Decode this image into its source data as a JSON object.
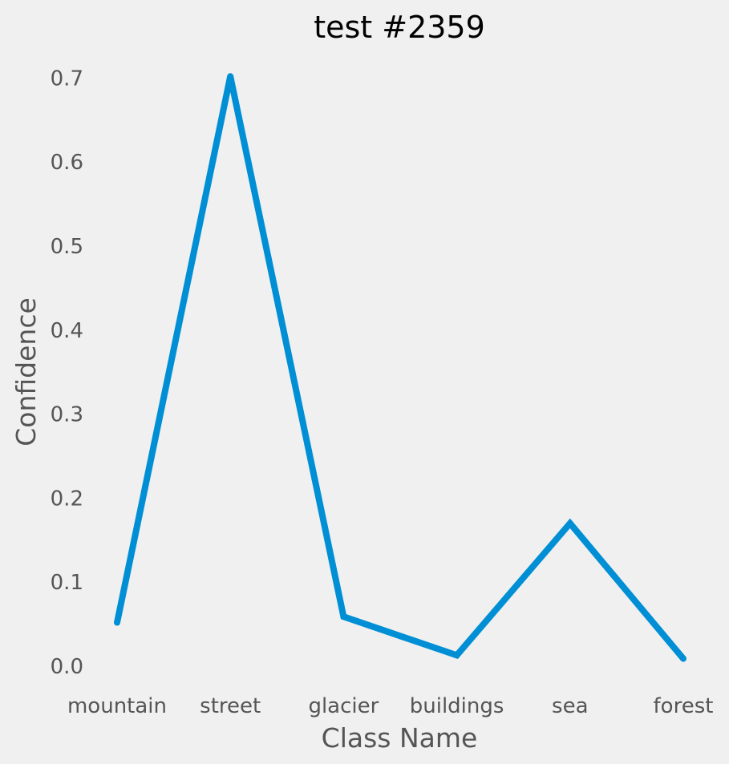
{
  "chart_data": {
    "type": "line",
    "title": "test #2359",
    "xlabel": "Class Name",
    "ylabel": "Confidence",
    "categories": [
      "mountain",
      "street",
      "glacier",
      "buildings",
      "sea",
      "forest"
    ],
    "values": [
      0.052,
      0.702,
      0.059,
      0.013,
      0.17,
      0.009
    ],
    "ylim": [
      0,
      0.7
    ],
    "yticks": [
      "0.0",
      "0.1",
      "0.2",
      "0.3",
      "0.4",
      "0.5",
      "0.6",
      "0.7"
    ],
    "grid": false,
    "line_color": "#008fd5",
    "background_color": "#f0f0f0"
  }
}
